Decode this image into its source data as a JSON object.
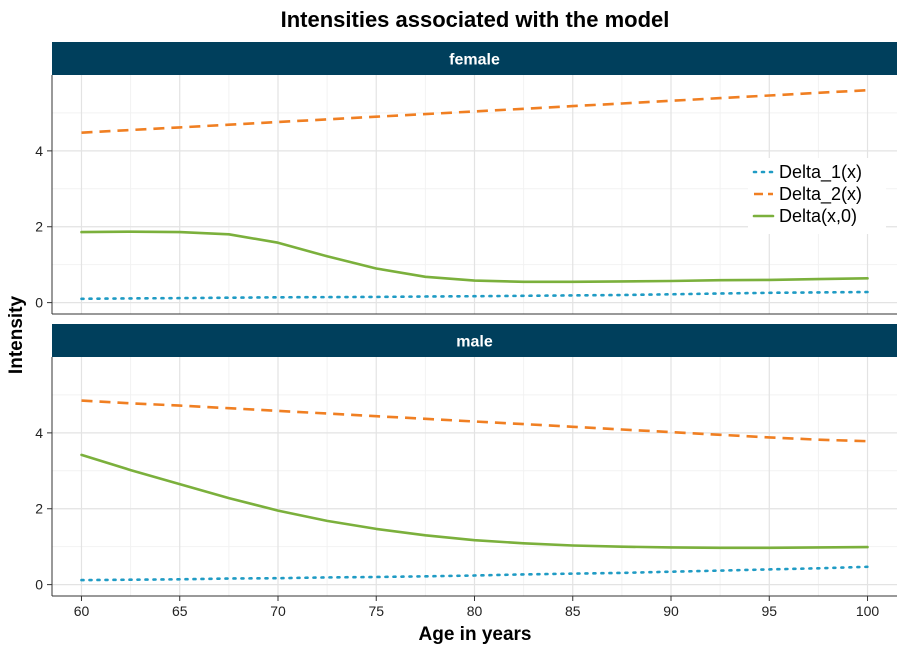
{
  "chart_data": {
    "type": "line",
    "title": "Intensities associated with the model",
    "xlabel": "Age in years",
    "ylabel": "Intensity",
    "xlim": [
      58.5,
      101.5
    ],
    "ylim": [
      -0.3,
      6.0
    ],
    "x_ticks": [
      60,
      65,
      70,
      75,
      80,
      85,
      90,
      95,
      100
    ],
    "y_ticks": [
      0,
      2,
      4
    ],
    "grid": true,
    "legend_position": "top-right",
    "colors": {
      "strip_bg": "#003f5c",
      "delta1": "#1f9bc4",
      "delta2": "#f07f22",
      "delta": "#7bb03c"
    },
    "legend": [
      "Delta_1(x)",
      "Delta_2(x)",
      "Delta(x,0)"
    ],
    "panels": [
      {
        "name": "female",
        "x": [
          60,
          62.5,
          65,
          67.5,
          70,
          72.5,
          75,
          77.5,
          80,
          82.5,
          85,
          87.5,
          90,
          92.5,
          95,
          97.5,
          100
        ],
        "series": [
          {
            "name": "Delta_1(x)",
            "style": "dotted",
            "values": [
              0.1,
              0.11,
              0.12,
              0.13,
              0.14,
              0.145,
              0.15,
              0.16,
              0.17,
              0.18,
              0.19,
              0.2,
              0.22,
              0.24,
              0.26,
              0.27,
              0.28
            ]
          },
          {
            "name": "Delta_2(x)",
            "style": "dashed",
            "values": [
              4.48,
              4.55,
              4.62,
              4.69,
              4.76,
              4.83,
              4.9,
              4.97,
              5.04,
              5.11,
              5.18,
              5.25,
              5.32,
              5.39,
              5.46,
              5.53,
              5.6
            ]
          },
          {
            "name": "Delta(x,0)",
            "style": "solid",
            "values": [
              1.86,
              1.87,
              1.86,
              1.8,
              1.58,
              1.22,
              0.9,
              0.68,
              0.58,
              0.55,
              0.55,
              0.56,
              0.57,
              0.59,
              0.6,
              0.62,
              0.64
            ]
          }
        ]
      },
      {
        "name": "male",
        "x": [
          60,
          62.5,
          65,
          67.5,
          70,
          72.5,
          75,
          77.5,
          80,
          82.5,
          85,
          87.5,
          90,
          92.5,
          95,
          97.5,
          100
        ],
        "series": [
          {
            "name": "Delta_1(x)",
            "style": "dotted",
            "values": [
              0.12,
              0.13,
              0.14,
              0.16,
              0.17,
              0.19,
              0.2,
              0.22,
              0.24,
              0.27,
              0.29,
              0.31,
              0.34,
              0.37,
              0.4,
              0.43,
              0.47
            ]
          },
          {
            "name": "Delta_2(x)",
            "style": "dashed",
            "values": [
              4.85,
              4.78,
              4.72,
              4.65,
              4.58,
              4.51,
              4.44,
              4.37,
              4.3,
              4.23,
              4.16,
              4.09,
              4.02,
              3.95,
              3.88,
              3.82,
              3.78
            ]
          },
          {
            "name": "Delta(x,0)",
            "style": "solid",
            "values": [
              3.42,
              3.02,
              2.65,
              2.28,
              1.95,
              1.68,
              1.47,
              1.3,
              1.17,
              1.09,
              1.03,
              1.0,
              0.98,
              0.97,
              0.97,
              0.98,
              0.99
            ]
          }
        ]
      }
    ]
  }
}
